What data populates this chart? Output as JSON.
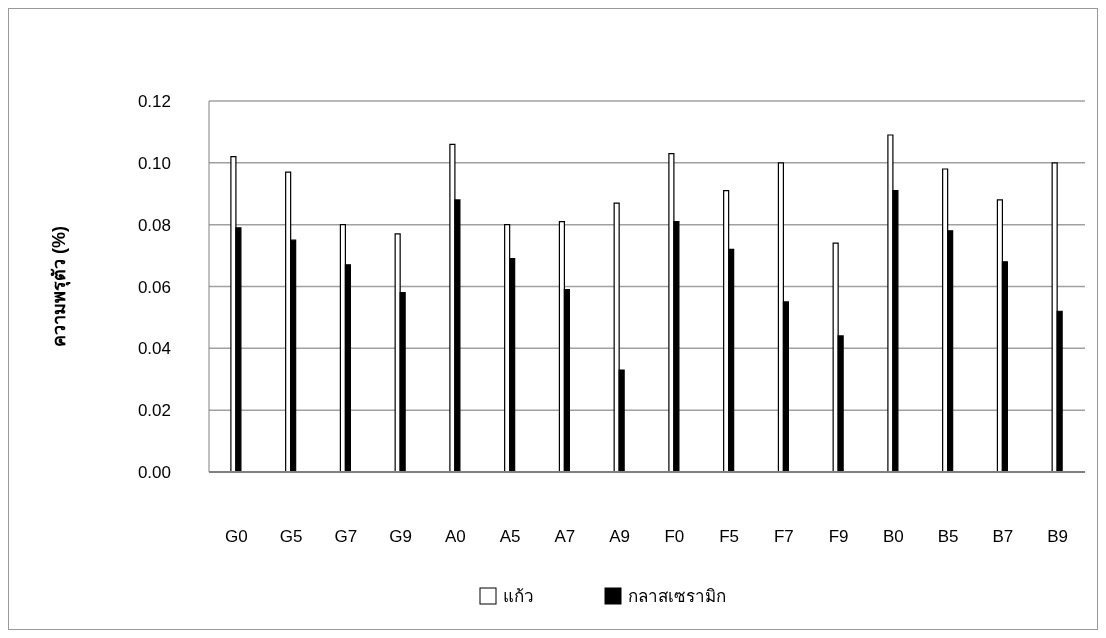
{
  "chart_data": {
    "type": "bar",
    "ylabel": "ความพรุตัว (%)",
    "categories": [
      "G0",
      "G5",
      "G7",
      "G9",
      "A0",
      "A5",
      "A7",
      "A9",
      "F0",
      "F5",
      "F7",
      "F9",
      "B0",
      "B5",
      "B7",
      "B9"
    ],
    "series": [
      {
        "name": "แก้ว",
        "color": "#ffffff",
        "values": [
          0.102,
          0.097,
          0.08,
          0.077,
          0.106,
          0.08,
          0.081,
          0.087,
          0.103,
          0.091,
          0.1,
          0.074,
          0.109,
          0.098,
          0.088,
          0.1
        ]
      },
      {
        "name": "กลาสเซรามิก",
        "color": "#000000",
        "values": [
          0.079,
          0.075,
          0.067,
          0.058,
          0.088,
          0.069,
          0.059,
          0.033,
          0.081,
          0.072,
          0.055,
          0.044,
          0.091,
          0.078,
          0.068,
          0.052
        ]
      }
    ],
    "ylim": [
      0,
      0.12
    ],
    "yticks": [
      {
        "value": 0,
        "label": "0.00"
      },
      {
        "value": 0.02,
        "label": "0.02"
      },
      {
        "value": 0.04,
        "label": "0.04"
      },
      {
        "value": 0.06,
        "label": "0.06"
      },
      {
        "value": 0.08,
        "label": "0.08"
      },
      {
        "value": 0.1,
        "label": "0.10"
      },
      {
        "value": 0.12,
        "label": "0.12"
      }
    ],
    "grid": "y",
    "legend": "bottom"
  }
}
